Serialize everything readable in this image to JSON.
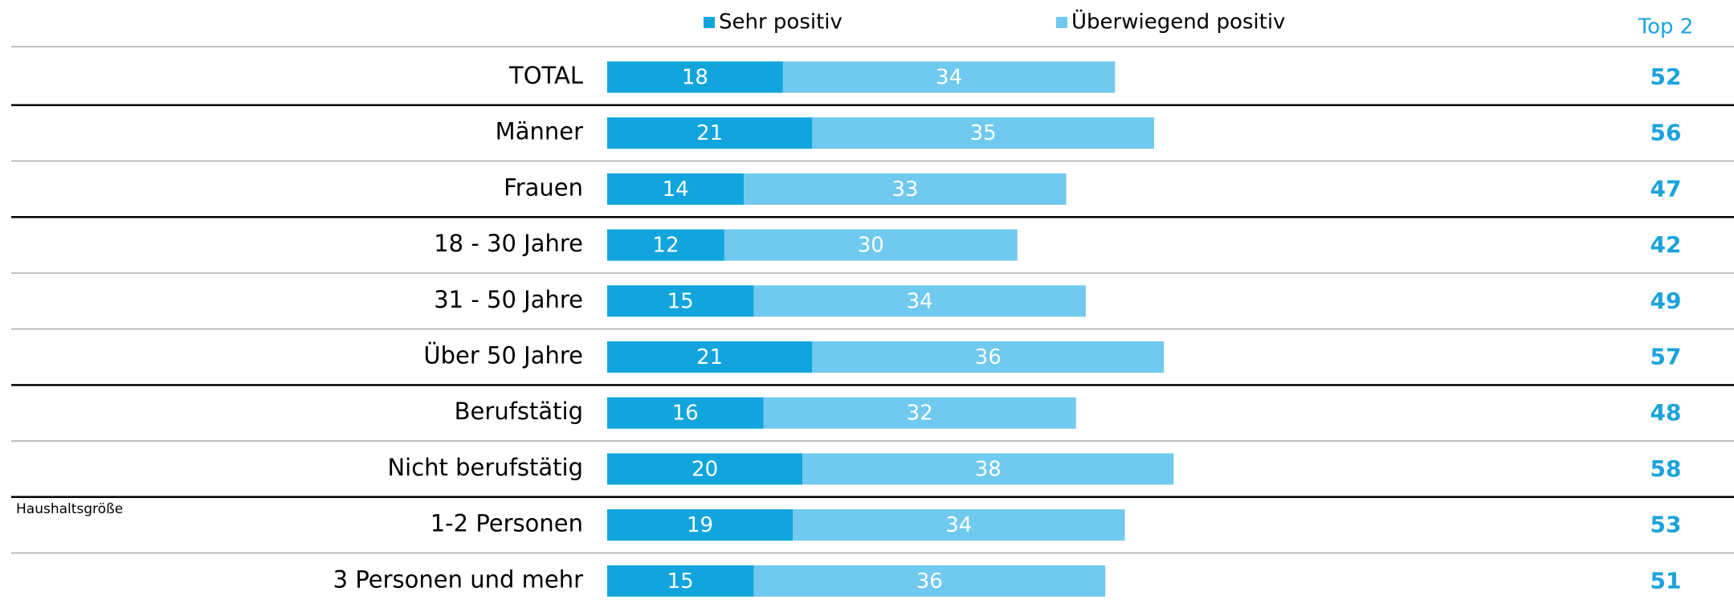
{
  "chart_data": {
    "type": "stacked-bar-horizontal",
    "categories": [
      "TOTAL",
      "Männer",
      "Frauen",
      "18 - 30 Jahre",
      "31 - 50 Jahre",
      "Über 50 Jahre",
      "Berufstätig",
      "Nicht berufstätig",
      "1-2 Personen",
      "3 Personen und mehr"
    ],
    "series": [
      {
        "name": "Sehr positiv",
        "color": "#12a5dd",
        "values": [
          18,
          21,
          14,
          12,
          15,
          21,
          16,
          20,
          19,
          15
        ]
      },
      {
        "name": "Überwiegend positiv",
        "color": "#70c9ee",
        "values": [
          34,
          35,
          33,
          30,
          34,
          36,
          32,
          38,
          34,
          36
        ]
      }
    ],
    "totals_label": "Top 2",
    "totals": [
      52,
      56,
      47,
      42,
      49,
      57,
      48,
      58,
      53,
      51
    ],
    "totals_color": "#1ba3dc",
    "annotation": "Haushaltsgröße",
    "xlim": [
      0,
      100
    ],
    "legend": "top"
  }
}
